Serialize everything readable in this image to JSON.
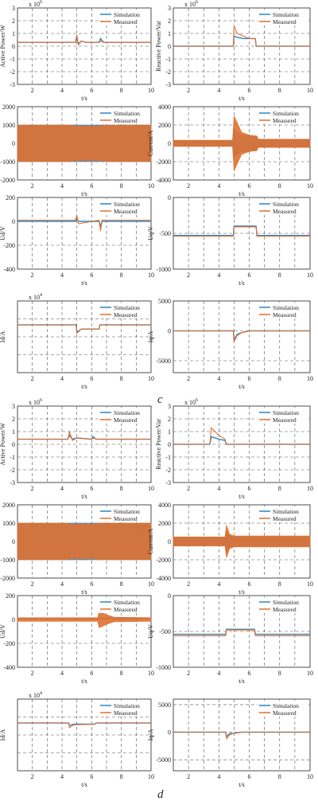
{
  "figure": {
    "panel_labels": [
      "c",
      "d"
    ]
  },
  "colors": {
    "simulation": "#2E86C1",
    "measured": "#E07030",
    "grid": "#555555",
    "axis": "#222222"
  },
  "chart_data": [
    {
      "type": "line",
      "group": "c",
      "ylabel": "Active Power/W",
      "xlabel": "t/s",
      "exponent": "x 10^6",
      "xlim": [
        1,
        10
      ],
      "ylim": [
        -3,
        3
      ],
      "xticks": [
        2,
        4,
        6,
        8,
        10
      ],
      "yticks": [
        -3,
        -2,
        -1,
        0,
        1,
        2,
        3
      ],
      "legend": [
        "Simulation",
        "Measured"
      ],
      "legend_position": "top-right",
      "series": [
        {
          "name": "Simulation",
          "x": [
            1,
            4.9,
            5.0,
            5.1,
            5.3,
            5.6,
            6.5,
            6.6,
            6.8,
            10
          ],
          "y": [
            0.3,
            0.3,
            0.6,
            0.2,
            0.4,
            0.3,
            0.3,
            0.6,
            0.3,
            0.3
          ]
        },
        {
          "name": "Measured",
          "x": [
            1,
            4.9,
            5.0,
            5.1,
            5.3,
            5.6,
            6.5,
            6.6,
            6.8,
            10
          ],
          "y": [
            0.3,
            0.3,
            0.9,
            0.1,
            0.4,
            0.3,
            0.3,
            0.4,
            0.3,
            0.3
          ]
        }
      ]
    },
    {
      "type": "line",
      "group": "c",
      "ylabel": "Reactive Power/Var",
      "xlabel": "t/s",
      "exponent": "x 10^6",
      "xlim": [
        1,
        10
      ],
      "ylim": [
        -3,
        3
      ],
      "xticks": [
        2,
        4,
        6,
        8,
        10
      ],
      "yticks": [
        -3,
        -2,
        -1,
        0,
        1,
        2,
        3
      ],
      "legend": [
        "Simulation",
        "Measured"
      ],
      "legend_position": "top-right",
      "series": [
        {
          "name": "Simulation",
          "x": [
            1,
            4.95,
            5.0,
            5.2,
            5.6,
            6.0,
            6.4,
            6.45,
            10
          ],
          "y": [
            0,
            0,
            0.8,
            0.7,
            0.6,
            0.6,
            0.6,
            0,
            0
          ]
        },
        {
          "name": "Measured",
          "x": [
            1,
            4.95,
            5.0,
            5.2,
            5.6,
            6.0,
            6.4,
            6.45,
            10
          ],
          "y": [
            0,
            0,
            1.6,
            1.0,
            0.8,
            0.6,
            0.6,
            0,
            0
          ]
        }
      ]
    },
    {
      "type": "line",
      "group": "c",
      "ylabel": "Voltage/V",
      "xlabel": "t/s",
      "xlim": [
        1,
        10
      ],
      "ylim": [
        -2000,
        2000
      ],
      "xticks": [
        2,
        4,
        6,
        8,
        10
      ],
      "yticks": [
        -2000,
        -1000,
        0,
        1000,
        2000
      ],
      "legend": [
        "Simulation",
        "Measured"
      ],
      "legend_position": "top-right",
      "series": [
        {
          "name": "Simulation",
          "x": [
            1,
            10
          ],
          "y_envelope": [
            1000,
            1000
          ]
        },
        {
          "name": "Measured",
          "x": [
            1,
            4.5,
            5.0,
            6.5,
            7.0,
            10
          ],
          "y_envelope": [
            1000,
            1000,
            950,
            950,
            1000,
            1000
          ]
        }
      ]
    },
    {
      "type": "line",
      "group": "c",
      "ylabel": "Current/A",
      "xlabel": "t/s",
      "xlim": [
        1,
        10
      ],
      "ylim": [
        -4000,
        4000
      ],
      "xticks": [
        2,
        4,
        6,
        8,
        10
      ],
      "yticks": [
        -4000,
        -2000,
        0,
        2000,
        4000
      ],
      "legend": [
        "Simulation",
        "Measured"
      ],
      "legend_position": "top-right",
      "series": [
        {
          "name": "Simulation",
          "x": [
            1,
            4.9,
            5.0,
            5.5,
            6.0,
            6.5,
            6.6,
            10
          ],
          "y_envelope": [
            300,
            300,
            1500,
            900,
            800,
            700,
            400,
            400
          ]
        },
        {
          "name": "Measured",
          "x": [
            1,
            4.9,
            5.0,
            5.5,
            6.0,
            6.5,
            6.6,
            10
          ],
          "y_envelope": [
            350,
            350,
            3000,
            1200,
            900,
            800,
            450,
            450
          ]
        }
      ]
    },
    {
      "type": "line",
      "group": "c",
      "ylabel": "Ud/V",
      "xlabel": "t/s",
      "xlim": [
        1,
        10
      ],
      "ylim": [
        -400,
        200
      ],
      "xticks": [
        2,
        4,
        6,
        8,
        10
      ],
      "yticks": [
        -400,
        -200,
        0,
        200
      ],
      "legend": [
        "Simulation",
        "Measured"
      ],
      "legend_position": "top-right",
      "series": [
        {
          "name": "Simulation",
          "x": [
            1,
            4.9,
            5.0,
            5.1,
            6.5,
            6.6,
            6.7,
            10
          ],
          "y": [
            0,
            0,
            30,
            0,
            0,
            -40,
            0,
            0
          ]
        },
        {
          "name": "Measured",
          "x": [
            1,
            4.9,
            5.0,
            5.1,
            6.5,
            6.6,
            6.7,
            10
          ],
          "y": [
            10,
            10,
            50,
            -20,
            10,
            -80,
            10,
            10
          ]
        }
      ]
    },
    {
      "type": "line",
      "group": "c",
      "ylabel": "Uq/V",
      "xlabel": "t/s",
      "xlim": [
        1,
        10
      ],
      "ylim": [
        -1000,
        0
      ],
      "xticks": [
        2,
        4,
        6,
        8,
        10
      ],
      "yticks": [
        -1000,
        -500,
        0
      ],
      "legend": [
        "Simulation",
        "Measured"
      ],
      "legend_position": "top-right",
      "series": [
        {
          "name": "Simulation",
          "x": [
            1,
            4.95,
            5.0,
            6.45,
            6.5,
            10
          ],
          "y": [
            -530,
            -530,
            -400,
            -400,
            -530,
            -530
          ]
        },
        {
          "name": "Measured",
          "x": [
            1,
            4.95,
            5.0,
            6.45,
            6.5,
            10
          ],
          "y": [
            -540,
            -540,
            -410,
            -410,
            -540,
            -540
          ]
        }
      ]
    },
    {
      "type": "line",
      "group": "c",
      "ylabel": "Id/A",
      "xlabel": "t/s",
      "exponent": "x 10^4",
      "xlim": [
        1,
        10
      ],
      "ylim": [
        -4,
        2
      ],
      "xticks": [
        2,
        4,
        6,
        8,
        10
      ],
      "yticks": [],
      "legend": [
        "Simulation",
        "Measured"
      ],
      "legend_position": "top-right",
      "series": [
        {
          "name": "Simulation",
          "x": [
            1,
            4.95,
            5.0,
            5.3,
            6.5,
            6.55,
            10
          ],
          "y": [
            0,
            0,
            -0.6,
            -0.35,
            -0.35,
            0,
            0
          ]
        },
        {
          "name": "Measured",
          "x": [
            1,
            4.95,
            5.0,
            5.3,
            6.5,
            6.55,
            10
          ],
          "y": [
            0,
            0,
            -0.7,
            -0.35,
            -0.35,
            0,
            0
          ]
        }
      ]
    },
    {
      "type": "line",
      "group": "c",
      "ylabel": "Iq/A",
      "xlabel": "t/s",
      "xlim": [
        1,
        10
      ],
      "ylim": [
        -7000,
        5000
      ],
      "xticks": [
        2,
        4,
        6,
        8,
        10
      ],
      "yticks": [
        -5000,
        0,
        5000
      ],
      "legend": [
        "Simulation",
        "Measured"
      ],
      "legend_position": "top-right",
      "series": [
        {
          "name": "Simulation",
          "x": [
            1,
            4.95,
            5.0,
            5.2,
            5.5,
            6.0,
            6.5,
            10
          ],
          "y": [
            0,
            0,
            -1500,
            -600,
            -300,
            0,
            0,
            0
          ]
        },
        {
          "name": "Measured",
          "x": [
            1,
            4.95,
            5.0,
            5.2,
            5.5,
            6.0,
            6.5,
            10
          ],
          "y": [
            0,
            0,
            -1800,
            -800,
            -300,
            0,
            0,
            0
          ]
        }
      ]
    },
    {
      "type": "line",
      "group": "d",
      "ylabel": "Active Power/W",
      "xlabel": "t/s",
      "exponent": "x 10^6",
      "xlim": [
        1,
        10
      ],
      "ylim": [
        -3,
        3
      ],
      "xticks": [
        2,
        4,
        6,
        8,
        10
      ],
      "yticks": [
        -3,
        -2,
        -1,
        0,
        1,
        2,
        3
      ],
      "legend": [
        "Simulation",
        "Measured"
      ],
      "legend_position": "top-right",
      "series": [
        {
          "name": "Simulation",
          "x": [
            1,
            4.4,
            4.5,
            4.7,
            5.0,
            6.0,
            6.1,
            6.3,
            10
          ],
          "y": [
            0.4,
            0.4,
            0.7,
            0.4,
            0.5,
            0.4,
            0.6,
            0.4,
            0.4
          ]
        },
        {
          "name": "Measured",
          "x": [
            1,
            4.4,
            4.5,
            4.7,
            5.0,
            6.0,
            6.1,
            6.3,
            10
          ],
          "y": [
            0.4,
            0.4,
            1.0,
            0.3,
            0.5,
            0.4,
            0.5,
            0.4,
            0.4
          ]
        }
      ]
    },
    {
      "type": "line",
      "group": "d",
      "ylabel": "Reactive Power/Var",
      "xlabel": "t/s",
      "exponent": "x 10^6",
      "xlim": [
        1,
        10
      ],
      "ylim": [
        -3,
        3
      ],
      "xticks": [
        2,
        4,
        6,
        8,
        10
      ],
      "yticks": [
        -3,
        -2,
        -1,
        0,
        1,
        2,
        3
      ],
      "legend": [
        "Simulation",
        "Measured"
      ],
      "legend_position": "top-right",
      "series": [
        {
          "name": "Simulation",
          "x": [
            1,
            3.4,
            3.5,
            4.0,
            4.4,
            4.5,
            10
          ],
          "y": [
            0,
            0,
            0.6,
            0.4,
            0.3,
            0,
            0
          ]
        },
        {
          "name": "Measured",
          "x": [
            1,
            3.4,
            3.5,
            4.0,
            4.4,
            4.5,
            10
          ],
          "y": [
            0,
            0,
            1.3,
            0.7,
            0.4,
            0,
            0
          ]
        }
      ]
    },
    {
      "type": "line",
      "group": "d",
      "ylabel": "Voltage/V",
      "xlabel": "t/s",
      "xlim": [
        1,
        10
      ],
      "ylim": [
        -2000,
        2000
      ],
      "xticks": [
        2,
        4,
        6,
        8,
        10
      ],
      "yticks": [
        -2000,
        -1000,
        0,
        1000,
        2000
      ],
      "legend": [
        "Simulation",
        "Measured"
      ],
      "legend_position": "top-right",
      "series": [
        {
          "name": "Simulation",
          "x": [
            1,
            10
          ],
          "y_envelope": [
            1000,
            1000
          ]
        },
        {
          "name": "Measured",
          "x": [
            1,
            4.3,
            4.5,
            6.2,
            6.4,
            10
          ],
          "y_envelope": [
            1000,
            1000,
            950,
            950,
            1000,
            1000
          ]
        }
      ]
    },
    {
      "type": "line",
      "group": "d",
      "ylabel": "Current/A",
      "xlabel": "t/s",
      "xlim": [
        1,
        10
      ],
      "ylim": [
        -4000,
        4000
      ],
      "xticks": [
        2,
        4,
        6,
        8,
        10
      ],
      "yticks": [
        -4000,
        -2000,
        0,
        2000,
        4000
      ],
      "legend": [
        "Simulation",
        "Measured"
      ],
      "legend_position": "top-right",
      "series": [
        {
          "name": "Simulation",
          "x": [
            1,
            4.4,
            4.5,
            4.7,
            5.0,
            10
          ],
          "y_envelope": [
            400,
            400,
            1200,
            600,
            500,
            500
          ]
        },
        {
          "name": "Measured",
          "x": [
            1,
            4.4,
            4.5,
            4.7,
            5.0,
            10
          ],
          "y_envelope": [
            500,
            500,
            1800,
            800,
            600,
            600
          ]
        }
      ]
    },
    {
      "type": "line",
      "group": "d",
      "ylabel": "Ud/V",
      "xlabel": "t/s",
      "xlim": [
        1,
        10
      ],
      "ylim": [
        -400,
        200
      ],
      "xticks": [
        2,
        4,
        6,
        8,
        10
      ],
      "yticks": [
        -400,
        -200,
        0,
        200
      ],
      "legend": [
        "Simulation",
        "Measured"
      ],
      "legend_position": "top-right",
      "series": [
        {
          "name": "Simulation",
          "x": [
            1,
            6.4,
            6.5,
            7.0,
            7.5,
            10
          ],
          "y": [
            10,
            10,
            10,
            10,
            10,
            10
          ]
        },
        {
          "name": "Measured",
          "x": [
            1,
            6.4,
            6.5,
            7.0,
            7.5,
            10
          ],
          "y_envelope": [
            15,
            15,
            70,
            40,
            20,
            15
          ]
        }
      ]
    },
    {
      "type": "line",
      "group": "d",
      "ylabel": "Uq/V",
      "xlabel": "t/s",
      "xlim": [
        1,
        10
      ],
      "ylim": [
        -1000,
        0
      ],
      "xticks": [
        2,
        4,
        6,
        8,
        10
      ],
      "yticks": [
        -1000,
        -500,
        0
      ],
      "legend": [
        "Simulation",
        "Measured"
      ],
      "legend_position": "top-right",
      "series": [
        {
          "name": "Simulation",
          "x": [
            1,
            4.45,
            4.5,
            6.35,
            6.4,
            10
          ],
          "y": [
            -540,
            -540,
            -470,
            -470,
            -540,
            -540
          ]
        },
        {
          "name": "Measured",
          "x": [
            1,
            4.45,
            4.5,
            6.35,
            6.4,
            10
          ],
          "y": [
            -560,
            -560,
            -480,
            -480,
            -560,
            -560
          ]
        }
      ]
    },
    {
      "type": "line",
      "group": "d",
      "ylabel": "Id/A",
      "xlabel": "t/s",
      "exponent": "x 10^4",
      "xlim": [
        1,
        10
      ],
      "ylim": [
        -4,
        2
      ],
      "xticks": [
        2,
        4,
        6,
        8,
        10
      ],
      "yticks": [],
      "legend": [
        "Simulation",
        "Measured"
      ],
      "legend_position": "top-right",
      "series": [
        {
          "name": "Simulation",
          "x": [
            1,
            4.45,
            4.5,
            4.8,
            6.2,
            6.3,
            10
          ],
          "y": [
            0,
            0,
            -0.2,
            -0.1,
            -0.1,
            0,
            0
          ]
        },
        {
          "name": "Measured",
          "x": [
            1,
            4.45,
            4.5,
            4.8,
            6.2,
            6.3,
            10
          ],
          "y": [
            0,
            0,
            -0.4,
            -0.15,
            -0.1,
            0,
            0
          ]
        }
      ]
    },
    {
      "type": "line",
      "group": "d",
      "ylabel": "Iq/A",
      "xlabel": "t/s",
      "xlim": [
        1,
        10
      ],
      "ylim": [
        -7000,
        6000
      ],
      "xticks": [
        2,
        4,
        6,
        8,
        10
      ],
      "yticks": [
        -5000,
        0,
        5000
      ],
      "legend": [
        "Simulation",
        "Measured"
      ],
      "legend_position": "top-right",
      "series": [
        {
          "name": "Simulation",
          "x": [
            1,
            4.45,
            4.5,
            4.7,
            5.0,
            5.5,
            10
          ],
          "y": [
            0,
            0,
            -800,
            -300,
            -200,
            0,
            0
          ]
        },
        {
          "name": "Measured",
          "x": [
            1,
            4.45,
            4.5,
            4.7,
            5.0,
            5.5,
            10
          ],
          "y": [
            0,
            0,
            -1200,
            -500,
            -200,
            0,
            0
          ]
        }
      ]
    }
  ]
}
